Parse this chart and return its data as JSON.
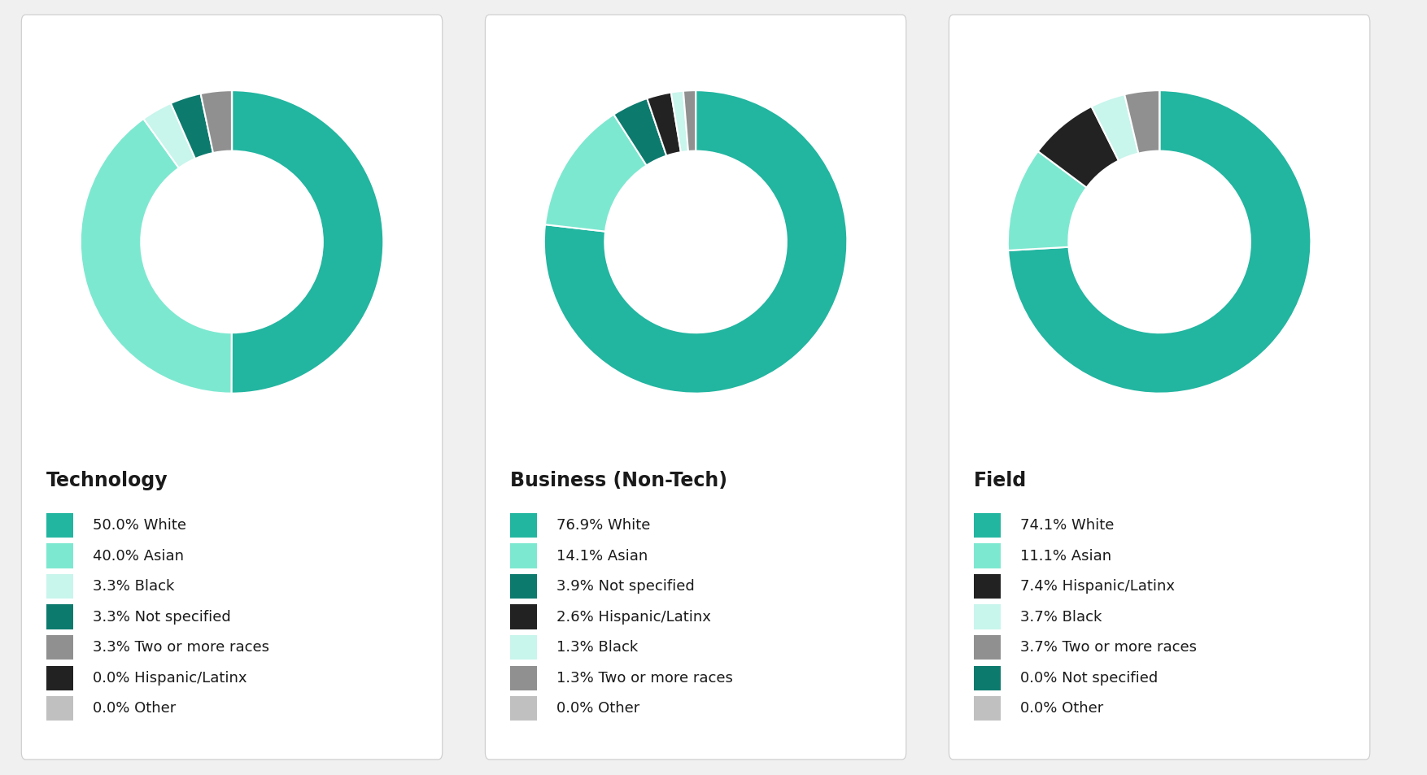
{
  "charts": [
    {
      "title": "Technology",
      "values": [
        50.0,
        40.0,
        3.3,
        3.3,
        3.3,
        0.001,
        0.001
      ],
      "labels": [
        "50.0% White",
        "40.0% Asian",
        "3.3% Black",
        "3.3% Not specified",
        "3.3% Two or more races",
        "0.0% Hispanic/Latinx",
        "0.0% Other"
      ],
      "colors": [
        "#22b5a0",
        "#7de8d0",
        "#c8f5ec",
        "#0d7a6e",
        "#909090",
        "#222222",
        "#c0c0c0"
      ]
    },
    {
      "title": "Business (Non-Tech)",
      "values": [
        76.9,
        14.1,
        3.9,
        2.6,
        1.3,
        1.3,
        0.001
      ],
      "labels": [
        "76.9% White",
        "14.1% Asian",
        "3.9% Not specified",
        "2.6% Hispanic/Latinx",
        "1.3% Black",
        "1.3% Two or more races",
        "0.0% Other"
      ],
      "colors": [
        "#22b5a0",
        "#7de8d0",
        "#0d7a6e",
        "#222222",
        "#c8f5ec",
        "#909090",
        "#c0c0c0"
      ]
    },
    {
      "title": "Field",
      "values": [
        74.1,
        11.1,
        7.4,
        3.7,
        3.7,
        0.001,
        0.001
      ],
      "labels": [
        "74.1% White",
        "11.1% Asian",
        "7.4% Hispanic/Latinx",
        "3.7% Black",
        "3.7% Two or more races",
        "0.0% Not specified",
        "0.0% Other"
      ],
      "colors": [
        "#22b5a0",
        "#7de8d0",
        "#222222",
        "#c8f5ec",
        "#909090",
        "#0d7a6e",
        "#c0c0c0"
      ]
    }
  ],
  "background_color": "#f0f0f0",
  "card_color": "#ffffff",
  "card_edge_color": "#cccccc",
  "title_fontsize": 17,
  "legend_fontsize": 13,
  "donut_width": 0.4,
  "start_angle": 90
}
